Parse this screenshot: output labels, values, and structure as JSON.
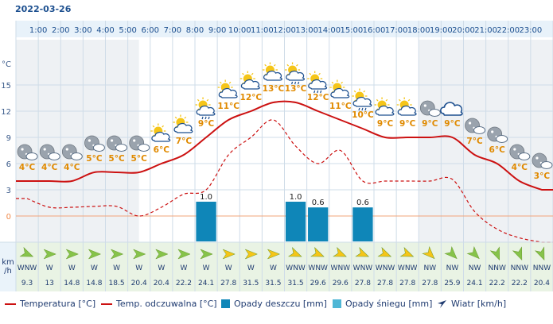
{
  "date": "2022-03-26",
  "chart_data": {
    "type": "line",
    "hours": [
      "1:00",
      "2:00",
      "3:00",
      "4:00",
      "5:00",
      "6:00",
      "7:00",
      "8:00",
      "9:00",
      "10:00",
      "11:00",
      "12:00",
      "13:00",
      "14:00",
      "15:00",
      "16:00",
      "17:00",
      "18:00",
      "19:00",
      "20:00",
      "21:00",
      "22:00",
      "23:00"
    ],
    "y_unit": "°C",
    "y_ticks": [
      15,
      12,
      9,
      6,
      3,
      0
    ],
    "ylim": [
      -3,
      17
    ],
    "temperature": [
      4,
      4,
      4,
      5,
      5,
      5,
      6,
      7,
      9,
      11,
      12,
      13,
      13,
      12,
      11,
      10,
      9,
      9,
      9,
      9,
      7,
      6,
      4,
      3
    ],
    "temperature_labels": [
      "4°C",
      "4°C",
      "4°C",
      "5°C",
      "5°C",
      "5°C",
      "6°C",
      "7°C",
      "9°C",
      "11°C",
      "12°C",
      "13°C",
      "13°C",
      "12°C",
      "11°C",
      "10°C",
      "9°C",
      "9°C",
      "9°C",
      "9°C",
      "7°C",
      "6°C",
      "4°C",
      "3°C"
    ],
    "apparent_temperature": [
      2,
      1,
      1,
      1.1,
      1.1,
      0,
      1,
      2.5,
      3,
      7,
      9,
      11,
      8,
      6,
      7.5,
      4,
      4,
      4,
      4,
      4.2,
      0.5,
      -1.5,
      -2.5,
      -3
    ],
    "rain_mm": [
      0,
      0,
      0,
      0,
      0,
      0,
      0,
      0,
      1.0,
      0,
      0,
      0,
      1.0,
      0.6,
      0,
      0.6,
      0,
      0,
      0,
      0,
      0,
      0,
      0,
      0
    ],
    "rain_labels": [
      "",
      "",
      "",
      "",
      "",
      "",
      "",
      "",
      "1.0",
      "",
      "",
      "",
      "1.0",
      "0.6",
      "",
      "0.6",
      "",
      "",
      "",
      "",
      "",
      "",
      "",
      ""
    ],
    "wind_dir": [
      "WNW",
      "W",
      "W",
      "W",
      "W",
      "W",
      "W",
      "W",
      "W",
      "W",
      "W",
      "W",
      "WNW",
      "WNW",
      "WNW",
      "WNW",
      "WNW",
      "WNW",
      "NW",
      "NW",
      "NW",
      "NNW",
      "NNW",
      "NNW"
    ],
    "wind_speed": [
      "9.3",
      "13",
      "14.8",
      "14.8",
      "18.5",
      "20.4",
      "20.4",
      "22.2",
      "24.1",
      "27.8",
      "31.5",
      "31.5",
      "31.5",
      "29.6",
      "29.6",
      "27.8",
      "27.8",
      "27.8",
      "27.8",
      "25.9",
      "24.1",
      "22.2",
      "22.2",
      "20.4"
    ],
    "icons": [
      "moon-cloud-icon",
      "moon-cloud-icon",
      "moon-cloud-icon",
      "moon-cloud-icon",
      "moon-cloud-icon",
      "moon-cloud-icon",
      "sun-cloud-icon",
      "sun-cloud-icon",
      "sun-cloud-rain-icon",
      "sun-cloud-icon",
      "sun-cloud-icon",
      "sun-cloud-icon",
      "sun-cloud-rain-icon",
      "sun-cloud-rain-icon",
      "sun-cloud-icon",
      "sun-cloud-rain-icon",
      "sun-cloud-icon",
      "sun-cloud-icon",
      "moon-cloud-icon",
      "cloud-icon",
      "moon-cloud-icon",
      "moon-cloud-icon",
      "moon-cloud-icon",
      "moon-cloud-icon"
    ],
    "wind_unit": "km\n/h",
    "colors": {
      "temperature": "#cc1111",
      "apparent": "#cc1111",
      "rain": "#0f86b8",
      "snow": "#4fb7d6",
      "grid": "#cfdce8",
      "zero": "#f2a47a",
      "header": "#e8f2fa",
      "night": "#eef1f4"
    }
  },
  "legend": {
    "temperature": "Temperatura [°C]",
    "apparent": "Temp. odczuwalna [°C]",
    "rain": "Opady deszczu [mm]",
    "snow": "Opady śniegu [mm]",
    "wind": "Wiatr [km/h]"
  }
}
